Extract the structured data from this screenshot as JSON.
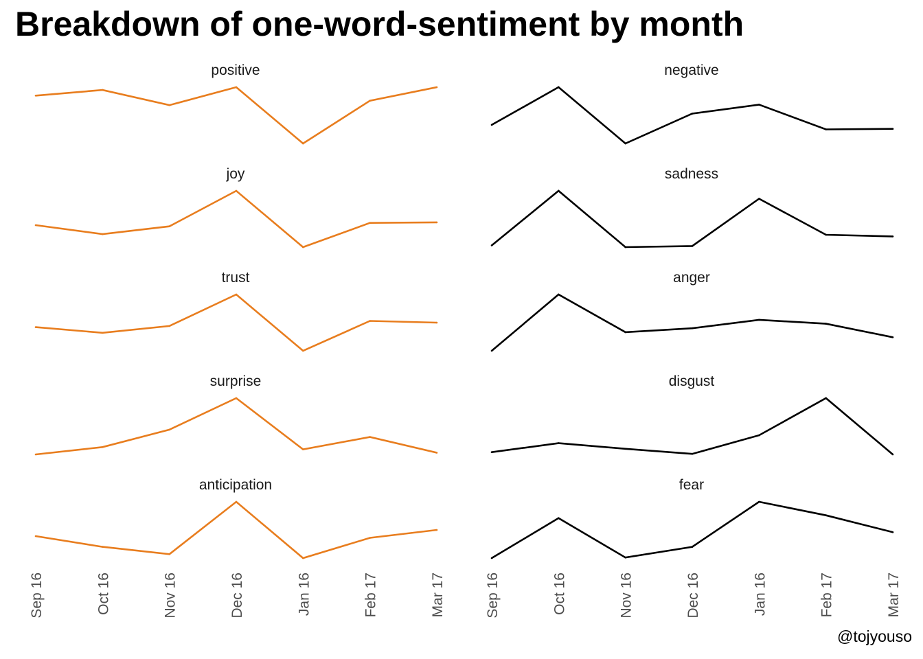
{
  "chart_data": {
    "type": "line",
    "title": "Breakdown of one-word-sentiment by month",
    "caption": "@tojyouso",
    "x": [
      "Sep 16",
      "Oct 16",
      "Nov 16",
      "Dec 16",
      "Jan 16",
      "Feb 17",
      "Mar 17"
    ],
    "y_axis_visible": false,
    "grid": false,
    "colors": {
      "left_column": "#E87D1E",
      "right_column": "#000000"
    },
    "panels": [
      {
        "label": "positive",
        "color": "#E87D1E",
        "values": [
          0.85,
          0.95,
          0.68,
          1.0,
          0.0,
          0.76,
          1.0
        ]
      },
      {
        "label": "negative",
        "color": "#000000",
        "values": [
          0.33,
          1.0,
          0.0,
          0.53,
          0.69,
          0.25,
          0.26
        ]
      },
      {
        "label": "joy",
        "color": "#E87D1E",
        "values": [
          0.39,
          0.23,
          0.37,
          1.0,
          0.0,
          0.43,
          0.44
        ]
      },
      {
        "label": "sadness",
        "color": "#000000",
        "values": [
          0.03,
          1.0,
          0.0,
          0.02,
          0.86,
          0.22,
          0.19
        ]
      },
      {
        "label": "trust",
        "color": "#E87D1E",
        "values": [
          0.42,
          0.32,
          0.44,
          1.0,
          0.0,
          0.53,
          0.5
        ]
      },
      {
        "label": "anger",
        "color": "#000000",
        "values": [
          0.0,
          1.0,
          0.33,
          0.4,
          0.55,
          0.48,
          0.24
        ]
      },
      {
        "label": "surprise",
        "color": "#E87D1E",
        "values": [
          0.0,
          0.13,
          0.44,
          1.0,
          0.09,
          0.31,
          0.03
        ]
      },
      {
        "label": "disgust",
        "color": "#000000",
        "values": [
          0.04,
          0.2,
          0.1,
          0.01,
          0.34,
          1.0,
          0.0
        ]
      },
      {
        "label": "anticipation",
        "color": "#E87D1E",
        "values": [
          0.39,
          0.2,
          0.07,
          1.0,
          0.0,
          0.36,
          0.5
        ]
      },
      {
        "label": "fear",
        "color": "#000000",
        "values": [
          0.0,
          0.71,
          0.01,
          0.2,
          1.0,
          0.76,
          0.46
        ]
      }
    ]
  }
}
